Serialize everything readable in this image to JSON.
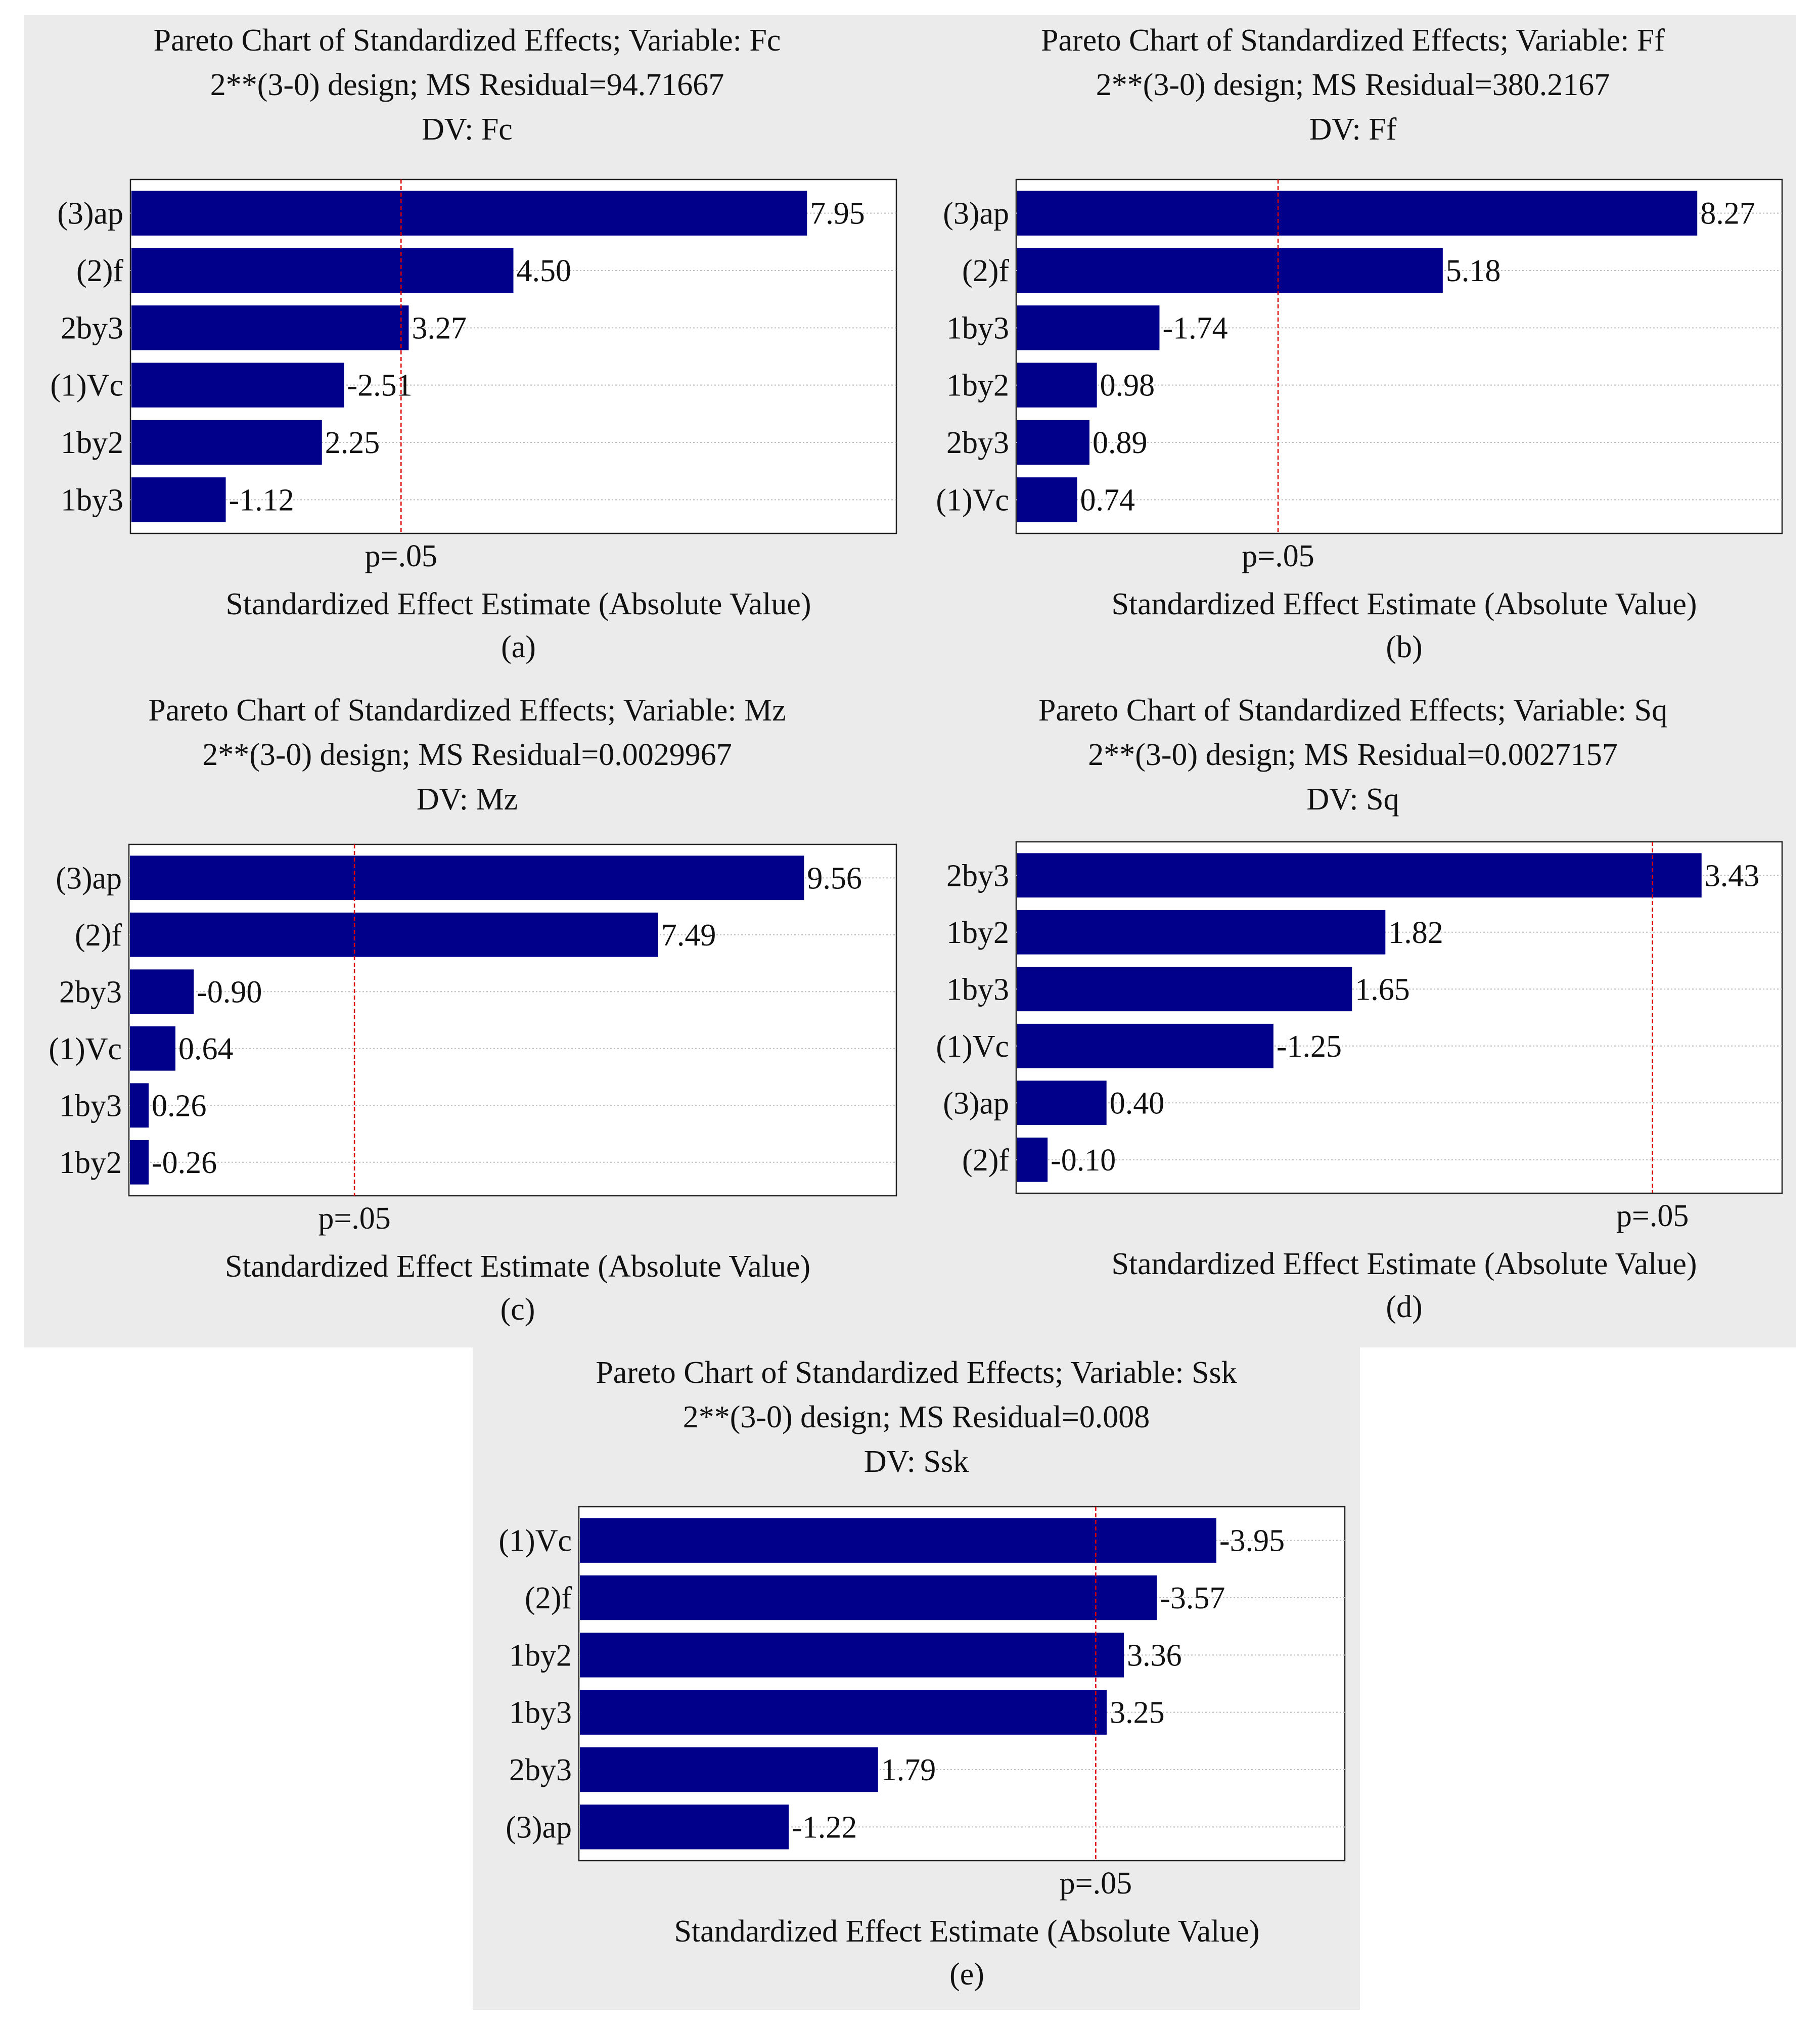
{
  "chart_data": [
    {
      "type": "bar",
      "orientation": "horizontal",
      "panel_label": "(a)",
      "title": "Pareto Chart of Standardized Effects; Variable: Fc",
      "subtitle": "2**(3-0) design; MS Residual=94.71667",
      "dv": "DV: Fc",
      "categories": [
        "(3)ap",
        "(2)f",
        "2by3",
        "(1)Vc",
        "1by2",
        "1by3"
      ],
      "values": [
        7.95,
        4.5,
        3.27,
        -2.51,
        2.25,
        -1.12
      ],
      "value_labels": [
        "7.95",
        "4.50",
        "3.27",
        "-2.51",
        "2.25",
        "-1.12"
      ],
      "p_line_value": 3.18,
      "p_label": "p=.05",
      "xlabel": "Standardized Effect Estimate (Absolute Value)",
      "xlim": [
        0,
        9
      ]
    },
    {
      "type": "bar",
      "orientation": "horizontal",
      "panel_label": "(b)",
      "title": "Pareto Chart of Standardized Effects; Variable: Ff",
      "subtitle": "2**(3-0) design; MS Residual=380.2167",
      "dv": "DV: Ff",
      "categories": [
        "(3)ap",
        "(2)f",
        "1by3",
        "1by2",
        "2by3",
        "(1)Vc"
      ],
      "values": [
        8.27,
        5.18,
        -1.74,
        0.98,
        0.89,
        0.74
      ],
      "value_labels": [
        "8.27",
        "5.18",
        "-1.74",
        "0.98",
        "0.89",
        "0.74"
      ],
      "p_line_value": 3.18,
      "p_label": "p=.05",
      "xlabel": "Standardized Effect Estimate (Absolute Value)",
      "xlim": [
        0,
        9.3
      ]
    },
    {
      "type": "bar",
      "orientation": "horizontal",
      "panel_label": "(c)",
      "title": "Pareto Chart of Standardized Effects; Variable: Mz",
      "subtitle": "2**(3-0) design; MS Residual=0.0029967",
      "dv": "DV: Mz",
      "categories": [
        "(3)ap",
        "(2)f",
        "2by3",
        "(1)Vc",
        "1by3",
        "1by2"
      ],
      "values": [
        9.56,
        7.49,
        -0.9,
        0.64,
        0.26,
        -0.26
      ],
      "value_labels": [
        "9.56",
        "7.49",
        "-0.90",
        "0.64",
        "0.26",
        "-0.26"
      ],
      "p_line_value": 3.18,
      "p_label": "p=.05",
      "xlabel": "Standardized Effect Estimate (Absolute Value)",
      "xlim": [
        -0.02,
        10.87
      ]
    },
    {
      "type": "bar",
      "orientation": "horizontal",
      "panel_label": "(d)",
      "title": "Pareto Chart of Standardized Effects; Variable: Sq",
      "subtitle": "2**(3-0) design; MS Residual=0.0027157",
      "dv": "DV: Sq",
      "categories": [
        "2by3",
        "1by2",
        "1by3",
        "(1)Vc",
        "(3)ap",
        "(2)f"
      ],
      "values": [
        3.43,
        1.82,
        1.65,
        -1.25,
        0.4,
        -0.1
      ],
      "value_labels": [
        "3.43",
        "1.82",
        "1.65",
        "-1.25",
        "0.40",
        "-0.10"
      ],
      "p_line_value": 3.18,
      "p_label": "p=.05",
      "xlabel": "Standardized Effect Estimate (Absolute Value)",
      "xlim": [
        -0.06,
        3.84
      ]
    },
    {
      "type": "bar",
      "orientation": "horizontal",
      "panel_label": "(e)",
      "title": "Pareto Chart of Standardized Effects; Variable: Ssk",
      "subtitle": "2**(3-0) design; MS Residual=0.008",
      "dv": "DV: Ssk",
      "categories": [
        "(1)Vc",
        "(2)f",
        "1by2",
        "1by3",
        "2by3",
        "(3)ap"
      ],
      "values": [
        -3.95,
        -3.57,
        3.36,
        3.25,
        1.79,
        -1.22
      ],
      "value_labels": [
        "-3.95",
        "-3.57",
        "3.36",
        "3.25",
        "1.79",
        "-1.22"
      ],
      "p_line_value": 3.18,
      "p_label": "p=.05",
      "xlabel": "Standardized Effect Estimate (Absolute Value)",
      "xlim": [
        -0.12,
        4.77
      ]
    }
  ],
  "colors": {
    "bar": "#00008b",
    "p_line": "#dd0000",
    "panel_bg": "#ebebeb",
    "plot_bg": "#ffffff",
    "grid": "#bdbdbd"
  }
}
